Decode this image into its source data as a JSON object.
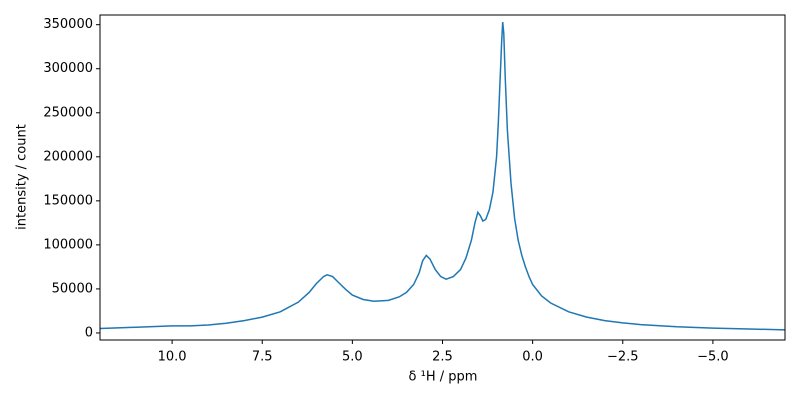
{
  "chart_data": {
    "type": "line",
    "xlabel": "δ ¹H / ppm",
    "ylabel": "intensity / count",
    "xlim": [
      12,
      -7
    ],
    "ylim": [
      -8000,
      361000
    ],
    "xticks": [
      {
        "value": 10,
        "label": "10.0"
      },
      {
        "value": 7.5,
        "label": "7.5"
      },
      {
        "value": 5,
        "label": "5.0"
      },
      {
        "value": 2.5,
        "label": "2.5"
      },
      {
        "value": 0,
        "label": "0.0"
      },
      {
        "value": -2.5,
        "label": "−2.5"
      },
      {
        "value": -5,
        "label": "−5.0"
      }
    ],
    "yticks": [
      0,
      50000,
      100000,
      150000,
      200000,
      250000,
      300000,
      350000
    ],
    "series": [
      {
        "color": "#1f77b4",
        "x": [
          12,
          11,
          10,
          9.5,
          9,
          8.5,
          8,
          7.5,
          7,
          6.5,
          6.2,
          6,
          5.8,
          5.7,
          5.55,
          5.4,
          5.2,
          5,
          4.7,
          4.4,
          4,
          3.7,
          3.5,
          3.3,
          3.15,
          3.05,
          2.95,
          2.85,
          2.7,
          2.55,
          2.4,
          2.2,
          2.0,
          1.85,
          1.7,
          1.6,
          1.52,
          1.45,
          1.38,
          1.3,
          1.2,
          1.1,
          1.0,
          0.95,
          0.9,
          0.86,
          0.83,
          0.8,
          0.76,
          0.7,
          0.6,
          0.5,
          0.4,
          0.3,
          0.2,
          0.1,
          0,
          -0.25,
          -0.5,
          -1,
          -1.5,
          -2,
          -2.5,
          -3,
          -4,
          -5,
          -6,
          -7
        ],
        "values": [
          5000,
          6500,
          8000,
          8000,
          9000,
          11000,
          14000,
          18000,
          24000,
          35000,
          46000,
          56000,
          64000,
          66000,
          64000,
          58000,
          50000,
          43000,
          38000,
          36000,
          37000,
          41000,
          46000,
          55000,
          68000,
          82000,
          88000,
          84000,
          72000,
          64000,
          61000,
          64000,
          72000,
          85000,
          105000,
          125000,
          137000,
          133000,
          127000,
          129000,
          140000,
          160000,
          200000,
          240000,
          290000,
          330000,
          353000,
          340000,
          290000,
          230000,
          170000,
          130000,
          105000,
          88000,
          75000,
          64000,
          55000,
          42000,
          34000,
          24000,
          18000,
          14000,
          11500,
          9500,
          7000,
          5500,
          4500,
          3500
        ]
      }
    ]
  }
}
